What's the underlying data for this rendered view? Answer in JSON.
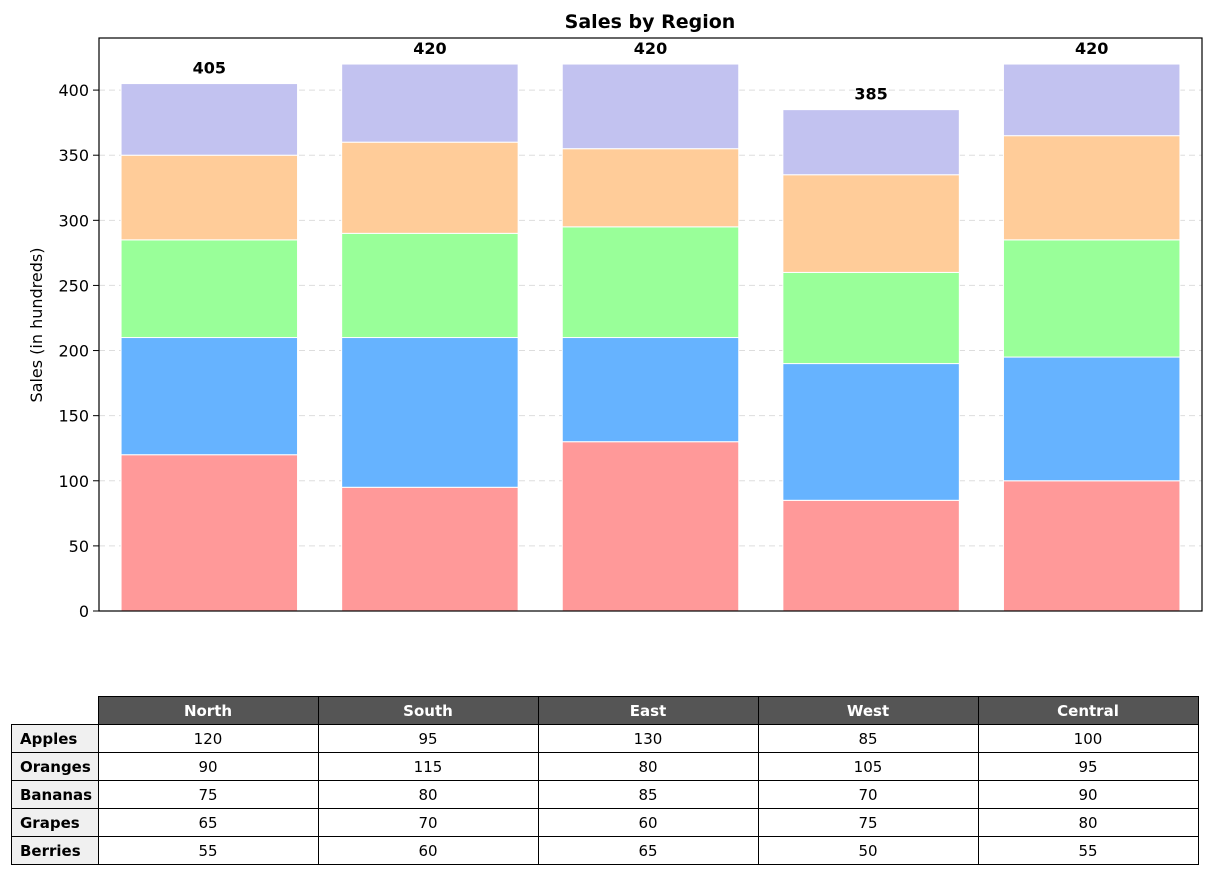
{
  "chart_data": {
    "type": "bar",
    "stacked": true,
    "title": "Sales by Region",
    "xlabel": "",
    "ylabel": "Sales (in hundreds)",
    "ylim": [
      0,
      440
    ],
    "yticks": [
      0,
      50,
      100,
      150,
      200,
      250,
      300,
      350,
      400
    ],
    "grid": "y-dashed",
    "categories": [
      "North",
      "South",
      "East",
      "West",
      "Central"
    ],
    "series": [
      {
        "name": "Apples",
        "color": "#ff9999",
        "values": [
          120,
          95,
          130,
          85,
          100
        ]
      },
      {
        "name": "Oranges",
        "color": "#66b3ff",
        "values": [
          90,
          115,
          80,
          105,
          95
        ]
      },
      {
        "name": "Bananas",
        "color": "#99ff99",
        "values": [
          75,
          80,
          85,
          70,
          90
        ]
      },
      {
        "name": "Grapes",
        "color": "#ffcc99",
        "values": [
          65,
          70,
          60,
          75,
          80
        ]
      },
      {
        "name": "Berries",
        "color": "#c2c2f0",
        "values": [
          55,
          60,
          65,
          50,
          55
        ]
      }
    ],
    "totals": [
      405,
      420,
      420,
      385,
      420
    ]
  },
  "table": {
    "header_color": "#555555",
    "row_header_color": "#f0f0f0"
  }
}
